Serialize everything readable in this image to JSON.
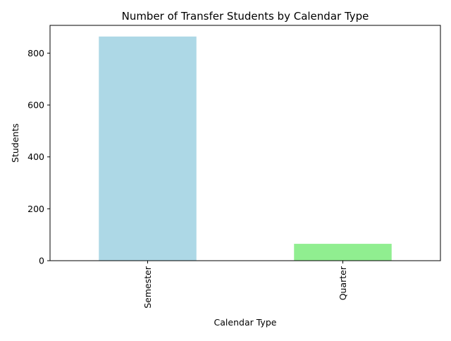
{
  "chart_data": {
    "type": "bar",
    "title": "Number of Transfer Students by Calendar Type",
    "xlabel": "Calendar Type",
    "ylabel": "Students",
    "categories": [
      "Semester",
      "Quarter"
    ],
    "values": [
      864,
      65
    ],
    "colors": [
      "#add8e6",
      "#90ee90"
    ],
    "ylim": [
      0,
      907
    ],
    "yticks": [
      0,
      200,
      400,
      600,
      800
    ],
    "grid": false,
    "legend": "none"
  }
}
